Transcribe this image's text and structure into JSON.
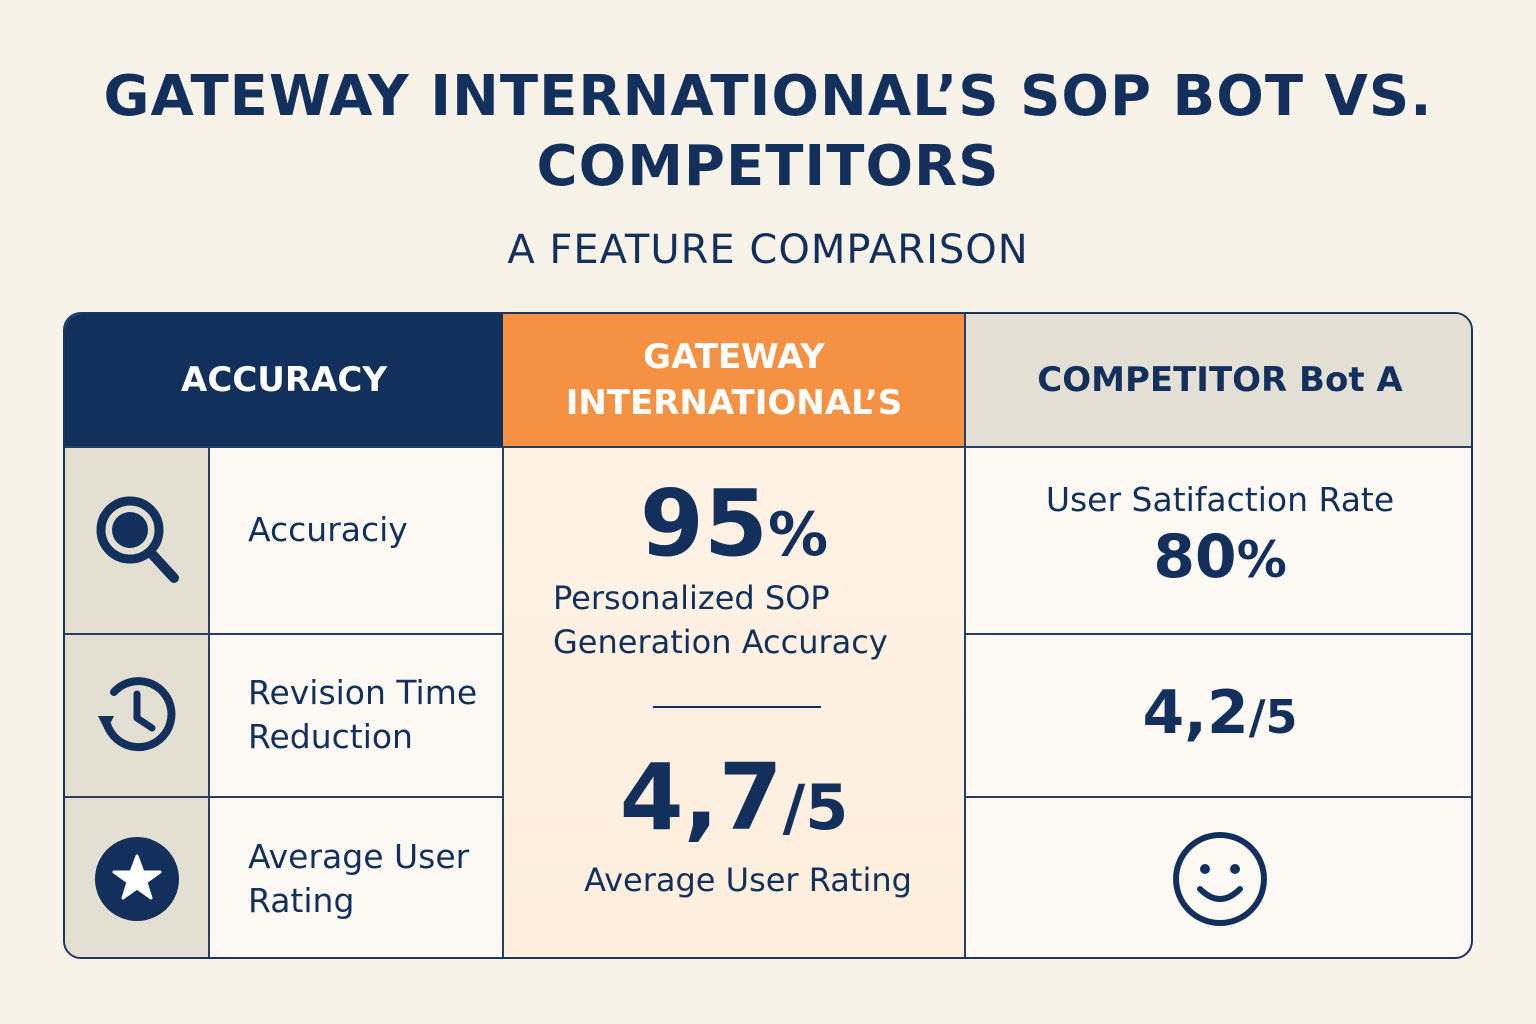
{
  "header": {
    "title": "GATEWAY INTERNATIONAL’S SOP BOT VS. COMPETITORS",
    "subtitle": "A FEATURE COMPARISON"
  },
  "table": {
    "columns": [
      "ACCURACY",
      "GATEWAY INTERNATIONAL’S",
      "COMPETITOR Bot A"
    ],
    "rows": [
      {
        "icon": "search-icon",
        "label": "Accuraciy"
      },
      {
        "icon": "history-clock-icon",
        "label": "Revision Time Reduction"
      },
      {
        "icon": "star-icon",
        "label": "Average User Rating"
      }
    ],
    "gateway": {
      "accuracy_value": "95",
      "accuracy_unit": "%",
      "accuracy_desc": "Personalized SOP Generation Accuracy",
      "rating_value": "4,7",
      "rating_unit": "/5",
      "rating_desc": "Average User Rating"
    },
    "competitor": {
      "satisfaction_label": "User Satifaction Rate",
      "satisfaction_value": "80",
      "satisfaction_unit": "%",
      "rating_value": "4,2",
      "rating_unit": "/5",
      "bottom_icon": "smiley-face-icon"
    }
  },
  "colors": {
    "navy": "#12305c",
    "orange": "#f59142",
    "background": "#f8f3e9",
    "gray_header": "#e4e0d5"
  }
}
